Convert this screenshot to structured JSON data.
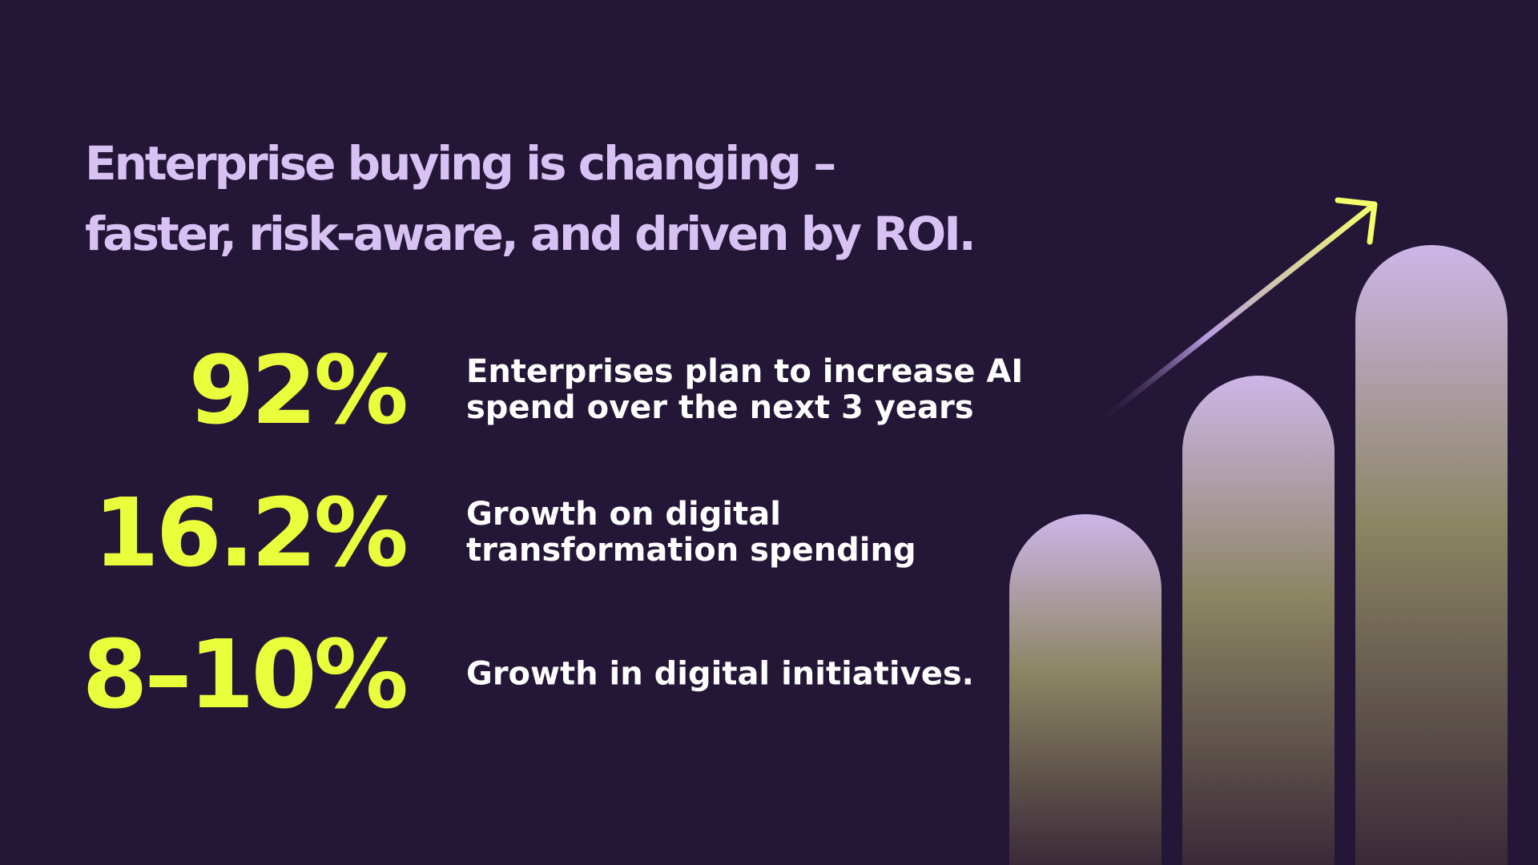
{
  "headline": {
    "lines": [
      "Enterprise buying is changing –",
      "faster, risk-aware, and driven by ROI."
    ]
  },
  "stats": [
    {
      "figure": "92%",
      "description": [
        "Enterprises plan to increase AI",
        "spend over the next 3 years"
      ]
    },
    {
      "figure": "16.2%",
      "description": [
        "Growth on digital",
        "transformation spending"
      ]
    },
    {
      "figure": "8–10%",
      "description": [
        "Growth in digital initiatives."
      ]
    }
  ]
}
